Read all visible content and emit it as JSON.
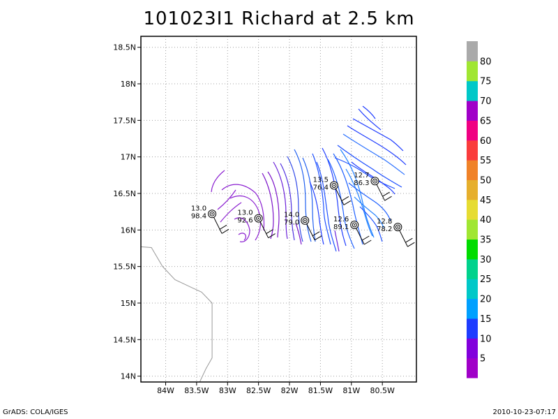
{
  "title": "101023I1 Richard at 2.5 km",
  "footer_left": "GrADS: COLA/IGES",
  "footer_right": "2010-10-23-07:17",
  "map": {
    "lon_range": [
      -84.4,
      -79.95
    ],
    "lat_range": [
      13.92,
      18.65
    ],
    "lon_ticks": [
      {
        "v": -84.0,
        "label": "84W"
      },
      {
        "v": -83.5,
        "label": "83.5W"
      },
      {
        "v": -83.0,
        "label": "83W"
      },
      {
        "v": -82.5,
        "label": "82.5W"
      },
      {
        "v": -82.0,
        "label": "82W"
      },
      {
        "v": -81.5,
        "label": "81.5W"
      },
      {
        "v": -81.0,
        "label": "81W"
      },
      {
        "v": -80.5,
        "label": "80.5W"
      }
    ],
    "lat_ticks": [
      {
        "v": 14.0,
        "label": "14N"
      },
      {
        "v": 14.5,
        "label": "14.5N"
      },
      {
        "v": 15.0,
        "label": "15N"
      },
      {
        "v": 15.5,
        "label": "15.5N"
      },
      {
        "v": 16.0,
        "label": "16N"
      },
      {
        "v": 16.5,
        "label": "16.5N"
      },
      {
        "v": 17.0,
        "label": "17N"
      },
      {
        "v": 17.5,
        "label": "17.5N"
      },
      {
        "v": 18.0,
        "label": "18N"
      },
      {
        "v": 18.5,
        "label": "18.5N"
      }
    ],
    "coastline": [
      [
        -84.4,
        15.77
      ],
      [
        -84.23,
        15.76
      ],
      [
        -84.05,
        15.5
      ],
      [
        -83.85,
        15.32
      ],
      [
        -83.6,
        15.22
      ],
      [
        -83.42,
        15.15
      ],
      [
        -83.25,
        15.0
      ],
      [
        -83.25,
        14.65
      ],
      [
        -83.25,
        14.25
      ],
      [
        -83.35,
        14.1
      ],
      [
        -83.45,
        13.92
      ]
    ],
    "sondes": [
      {
        "lon": -83.25,
        "lat": 16.22,
        "temp": "13.0",
        "rh": "98.4"
      },
      {
        "lon": -82.5,
        "lat": 16.16,
        "temp": "13.0",
        "rh": "92.6"
      },
      {
        "lon": -81.75,
        "lat": 16.13,
        "temp": "14.0",
        "rh": "79.0"
      },
      {
        "lon": -81.28,
        "lat": 16.61,
        "temp": "13.5",
        "rh": "76.4"
      },
      {
        "lon": -80.95,
        "lat": 16.07,
        "temp": "12.6",
        "rh": "89.1"
      },
      {
        "lon": -80.62,
        "lat": 16.67,
        "temp": "12.7",
        "rh": "86.3"
      },
      {
        "lon": -80.25,
        "lat": 16.04,
        "temp": "12.8",
        "rh": "78.2"
      }
    ],
    "colorbar": {
      "labels": [
        "5",
        "10",
        "15",
        "20",
        "25",
        "30",
        "35",
        "40",
        "45",
        "50",
        "55",
        "60",
        "65",
        "70",
        "75",
        "80"
      ],
      "colors": [
        "#a000c8",
        "#8200dc",
        "#1e3cff",
        "#00a0ff",
        "#00c8c8",
        "#00d28c",
        "#00dc00",
        "#a0e632",
        "#e6dc32",
        "#e6af2d",
        "#f08228",
        "#fa3c3c",
        "#f00082",
        "#a000c8",
        "#00c8c8",
        "#a0e632",
        "#aaaaaa"
      ]
    }
  }
}
